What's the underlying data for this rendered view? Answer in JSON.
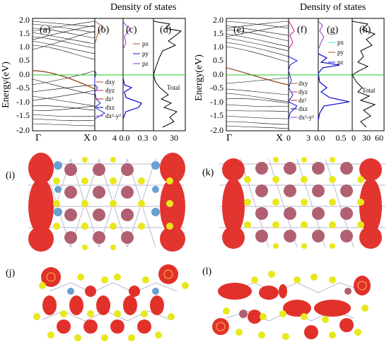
{
  "figure": {
    "dos_title_left": "Density of states",
    "dos_title_right": "Density of states",
    "ylabel": "Energy(eV)",
    "yticks": [
      "2.0",
      "1.5",
      "1.0",
      "0.5",
      "0.0",
      "-0.5",
      "-1.0",
      "-1.5",
      "-2.0"
    ],
    "panels": {
      "a": "(a)",
      "b": "(b)",
      "c": "(c)",
      "d": "(d)",
      "e": "(e)",
      "f": "(f)",
      "g": "(g)",
      "h": "(h)",
      "i": "(i)",
      "j": "(j)",
      "k": "(k)",
      "l": "(l)"
    },
    "left": {
      "gamma": "Γ",
      "x": "X",
      "b_ticks": [
        "0",
        "4"
      ],
      "c_ticks": [
        "0.0",
        "0.3"
      ],
      "d_ticks": [
        "0",
        "30"
      ],
      "d_legend": [
        "dxy",
        "dyz",
        "dz²",
        "dxz",
        "dx²-y²"
      ],
      "p_legend": [
        "px",
        "py",
        "pz"
      ],
      "total": "Total"
    },
    "right": {
      "gamma": "Γ",
      "x": "X",
      "f_ticks": [
        "0",
        "3"
      ],
      "g_ticks": [
        "0.0",
        "0.5"
      ],
      "h_ticks": [
        "0",
        "30",
        "60"
      ],
      "d_legend": [
        "dxy",
        "dyz",
        "dz²",
        "dxz",
        "dx²-y²"
      ],
      "p_legend": [
        "px",
        "py",
        "pz"
      ],
      "total": "Total"
    },
    "colors": {
      "fermi": "#22cc22",
      "band": "#000000",
      "special_band": "#a0522d",
      "dxy": "#a0522d",
      "dyz": "#c71585",
      "dz2": "#b22222",
      "dxz": "#000080",
      "dx2y2": "#9932cc",
      "px": "#40e0d0",
      "py": "#a0522d",
      "pz": "#1a1ad0",
      "orbital_red": "#e0201a",
      "atom_yellow": "#e8e81a",
      "atom_blue": "#6a9fd0",
      "atom_mauve": "#b06070"
    }
  }
}
